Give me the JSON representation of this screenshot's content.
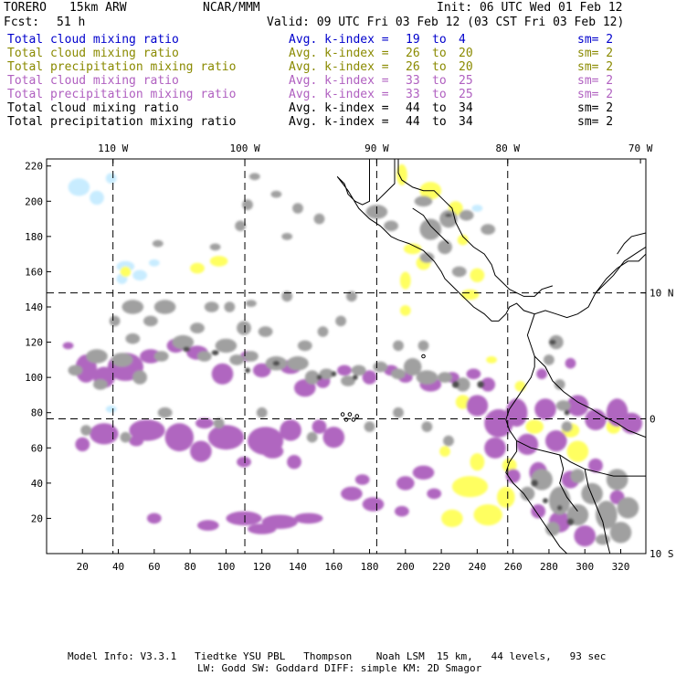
{
  "header": {
    "model": "TORERO",
    "resolution": "15km ARW",
    "org": "NCAR/MMM",
    "init": "Init: 06 UTC Wed 01 Feb 12",
    "fcst_label": "Fcst:",
    "fcst_value": "51 h",
    "valid": "Valid: 09 UTC Fri 03 Feb 12 (03 CST Fri 03 Feb 12)"
  },
  "legend": [
    {
      "field": "Total cloud mixing ratio",
      "kindex": "Avg. k-index =",
      "from": "19",
      "to_word": "to",
      "to": "4",
      "sm": "sm= 2",
      "color": "#0000cc"
    },
    {
      "field": "Total cloud mixing ratio",
      "kindex": "Avg. k-index =",
      "from": "26",
      "to_word": "to",
      "to": "20",
      "sm": "sm= 2",
      "color": "#8a8a00"
    },
    {
      "field": "Total precipitation mixing ratio",
      "kindex": "Avg. k-index =",
      "from": "26",
      "to_word": "to",
      "to": "20",
      "sm": "sm= 2",
      "color": "#8a8a00"
    },
    {
      "field": "Total cloud mixing ratio",
      "kindex": "Avg. k-index =",
      "from": "33",
      "to_word": "to",
      "to": "25",
      "sm": "sm= 2",
      "color": "#b060c0"
    },
    {
      "field": "Total precipitation mixing ratio",
      "kindex": "Avg. k-index =",
      "from": "33",
      "to_word": "to",
      "to": "25",
      "sm": "sm= 2",
      "color": "#b060c0"
    },
    {
      "field": "Total cloud mixing ratio",
      "kindex": "Avg. k-index =",
      "from": "44",
      "to_word": "to",
      "to": "34",
      "sm": "sm= 2",
      "color": "#000000"
    },
    {
      "field": "Total precipitation mixing ratio",
      "kindex": "Avg. k-index =",
      "from": "44",
      "to_word": "to",
      "to": "34",
      "sm": "sm= 2",
      "color": "#000000"
    }
  ],
  "map": {
    "top_lon_labels": [
      "110 W",
      "100 W",
      "90 W",
      "80 W",
      "70 W"
    ],
    "right_lat_labels": [
      "10 N",
      "0",
      "10 S"
    ],
    "y_ticks": [
      "20",
      "40",
      "60",
      "80",
      "100",
      "120",
      "140",
      "160",
      "180",
      "200",
      "220"
    ],
    "x_ticks": [
      "20",
      "40",
      "60",
      "80",
      "100",
      "120",
      "140",
      "160",
      "180",
      "200",
      "220",
      "240",
      "260",
      "280",
      "300",
      "320"
    ],
    "colors": {
      "light_cyan": "#c8ecff",
      "yellow": "#ffff60",
      "purple": "#b066c0",
      "gray": "#a0a0a0",
      "dark": "#505050"
    }
  },
  "footer": {
    "line1": "Model Info: V3.3.1   Tiedtke YSU PBL   Thompson    Noah LSM  15 km,   44 levels,   93 sec",
    "line2": "LW: Godd SW: Goddard DIFF: simple KM: 2D Smagor"
  }
}
